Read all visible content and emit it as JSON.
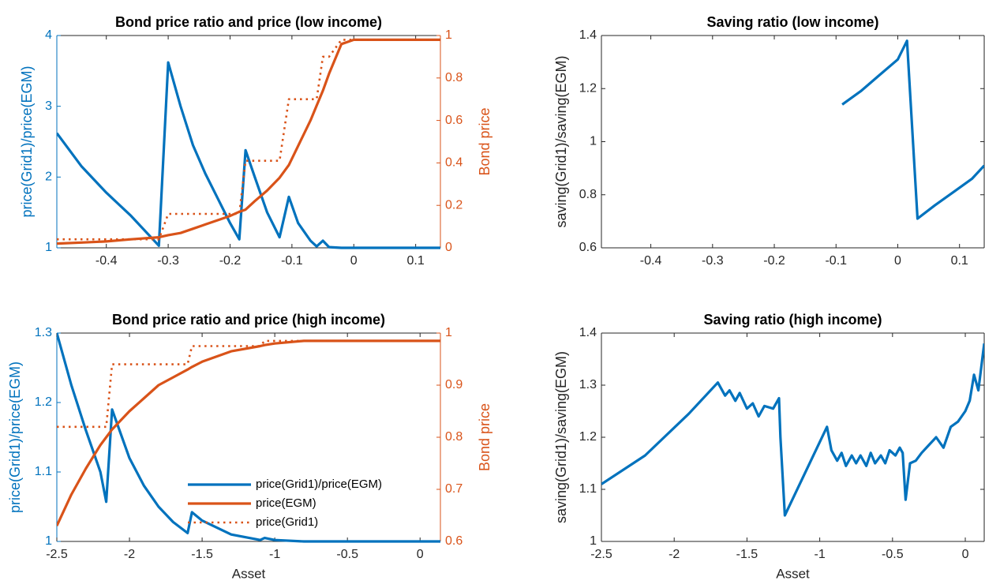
{
  "chart_data": [
    {
      "type": "line",
      "title": "Bond price ratio and price (low income)",
      "ylabel": "price(Grid1)/price(EGM)",
      "y2label": "Bond price",
      "ycolor": "#0072BD",
      "y2color": "#D95319",
      "xlim": [
        -0.48,
        0.14
      ],
      "xticks": [
        -0.4,
        -0.3,
        -0.2,
        -0.1,
        0,
        0.1
      ],
      "ylim": [
        1,
        4
      ],
      "yticks": [
        1,
        2,
        3,
        4
      ],
      "y2lim": [
        0,
        1
      ],
      "y2ticks": [
        0,
        0.2,
        0.4,
        0.6,
        0.8,
        1
      ],
      "x": [
        -0.48,
        -0.44,
        -0.4,
        -0.36,
        -0.315,
        -0.3,
        -0.28,
        -0.26,
        -0.24,
        -0.22,
        -0.2,
        -0.185,
        -0.175,
        -0.16,
        -0.14,
        -0.12,
        -0.105,
        -0.09,
        -0.07,
        -0.06,
        -0.05,
        -0.04,
        -0.02,
        0,
        0.05,
        0.1,
        0.14
      ],
      "series": [
        {
          "color": "#0072BD",
          "linestyle": "solid",
          "values": [
            2.62,
            2.15,
            1.78,
            1.45,
            1.03,
            3.62,
            3.0,
            2.45,
            2.05,
            1.7,
            1.35,
            1.12,
            2.38,
            2.0,
            1.5,
            1.15,
            1.72,
            1.35,
            1.1,
            1.02,
            1.1,
            1.01,
            1.0,
            1.0,
            1.0,
            1.0,
            1.0
          ]
        },
        {
          "color": "#D95319",
          "linestyle": "solid",
          "axis": "y2",
          "values": [
            0.02,
            0.025,
            0.03,
            0.04,
            0.05,
            0.06,
            0.07,
            0.09,
            0.11,
            0.13,
            0.15,
            0.17,
            0.18,
            0.22,
            0.27,
            0.33,
            0.39,
            0.48,
            0.6,
            0.67,
            0.74,
            0.82,
            0.96,
            0.98,
            0.98,
            0.98,
            0.98
          ]
        },
        {
          "color": "#D95319",
          "linestyle": "dotted",
          "axis": "y2",
          "values": [
            0.04,
            0.04,
            0.04,
            0.04,
            0.04,
            0.16,
            0.16,
            0.16,
            0.16,
            0.16,
            0.16,
            0.16,
            0.41,
            0.41,
            0.41,
            0.41,
            0.7,
            0.7,
            0.7,
            0.7,
            0.9,
            0.9,
            0.98,
            0.98,
            0.98,
            0.98,
            0.98
          ]
        }
      ]
    },
    {
      "type": "line",
      "title": "Saving ratio (low income)",
      "ylabel": "saving(Grid1)/saving(EGM)",
      "xlim": [
        -0.48,
        0.14
      ],
      "xticks": [
        -0.4,
        -0.3,
        -0.2,
        -0.1,
        0,
        0.1
      ],
      "ylim": [
        0.6,
        1.4
      ],
      "yticks": [
        0.6,
        0.8,
        1,
        1.2,
        1.4
      ],
      "x": [
        -0.09,
        -0.06,
        -0.03,
        0,
        0.015,
        0.032,
        0.06,
        0.09,
        0.12,
        0.14
      ],
      "color": "#0072BD",
      "values": [
        1.14,
        1.19,
        1.25,
        1.31,
        1.38,
        0.71,
        0.76,
        0.81,
        0.86,
        0.91
      ]
    },
    {
      "type": "line",
      "title": "Bond price ratio and price  (high income)",
      "xlabel": "Asset",
      "ylabel": "price(Grid1)/price(EGM)",
      "y2label": "Bond price",
      "ycolor": "#0072BD",
      "y2color": "#D95319",
      "legend": "lower right",
      "xlim": [
        -2.5,
        0.14
      ],
      "xticks": [
        -2.5,
        -2,
        -1.5,
        -1,
        -0.5,
        0
      ],
      "ylim": [
        1,
        1.3
      ],
      "yticks": [
        1,
        1.1,
        1.2,
        1.3
      ],
      "y2lim": [
        0.6,
        1
      ],
      "y2ticks": [
        0.6,
        0.7,
        0.8,
        0.9,
        1
      ],
      "x": [
        -2.5,
        -2.4,
        -2.3,
        -2.2,
        -2.16,
        -2.12,
        -2.0,
        -1.9,
        -1.8,
        -1.7,
        -1.6,
        -1.57,
        -1.5,
        -1.3,
        -1.1,
        -1.07,
        -1.0,
        -0.8,
        -0.5,
        -0.2,
        0.14
      ],
      "series": [
        {
          "name": "price(Grid1)/price(EGM)",
          "color": "#0072BD",
          "linestyle": "solid",
          "values": [
            1.3,
            1.225,
            1.16,
            1.1,
            1.057,
            1.19,
            1.12,
            1.08,
            1.05,
            1.028,
            1.012,
            1.042,
            1.03,
            1.01,
            1.002,
            1.005,
            1.002,
            1.0,
            1.0,
            1.0,
            1.0
          ]
        },
        {
          "name": "price(EGM)",
          "color": "#D95319",
          "linestyle": "solid",
          "axis": "y2",
          "values": [
            0.63,
            0.69,
            0.74,
            0.785,
            0.8,
            0.815,
            0.85,
            0.875,
            0.9,
            0.915,
            0.93,
            0.935,
            0.945,
            0.965,
            0.975,
            0.977,
            0.98,
            0.985,
            0.985,
            0.985,
            0.985
          ]
        },
        {
          "name": "price(Grid1)",
          "color": "#D95319",
          "linestyle": "dotted",
          "axis": "y2",
          "values": [
            0.82,
            0.82,
            0.82,
            0.82,
            0.82,
            0.94,
            0.94,
            0.94,
            0.94,
            0.94,
            0.94,
            0.975,
            0.975,
            0.975,
            0.975,
            0.985,
            0.985,
            0.985,
            0.985,
            0.985,
            0.985
          ]
        }
      ]
    },
    {
      "type": "line",
      "title": "Saving ratio (high income)",
      "xlabel": "Asset",
      "ylabel": "saving(Grid1)/saving(EGM)",
      "xlim": [
        -2.5,
        0.13
      ],
      "xticks": [
        -2.5,
        -2,
        -1.5,
        -1,
        -0.5,
        0
      ],
      "ylim": [
        1,
        1.4
      ],
      "yticks": [
        1,
        1.1,
        1.2,
        1.3,
        1.4
      ],
      "x": [
        -2.5,
        -2.2,
        -1.9,
        -1.7,
        -1.65,
        -1.62,
        -1.58,
        -1.55,
        -1.5,
        -1.46,
        -1.42,
        -1.38,
        -1.32,
        -1.28,
        -1.27,
        -1.24,
        -0.95,
        -0.92,
        -0.88,
        -0.85,
        -0.82,
        -0.78,
        -0.75,
        -0.72,
        -0.68,
        -0.65,
        -0.62,
        -0.58,
        -0.55,
        -0.52,
        -0.48,
        -0.45,
        -0.43,
        -0.41,
        -0.38,
        -0.34,
        -0.3,
        -0.25,
        -0.2,
        -0.15,
        -0.1,
        -0.05,
        0,
        0.03,
        0.06,
        0.09,
        0.13
      ],
      "color": "#0072BD",
      "values": [
        1.11,
        1.165,
        1.245,
        1.305,
        1.28,
        1.29,
        1.27,
        1.285,
        1.255,
        1.265,
        1.24,
        1.26,
        1.255,
        1.275,
        1.2,
        1.05,
        1.22,
        1.175,
        1.155,
        1.17,
        1.145,
        1.165,
        1.15,
        1.165,
        1.145,
        1.17,
        1.15,
        1.165,
        1.15,
        1.175,
        1.165,
        1.18,
        1.17,
        1.08,
        1.15,
        1.155,
        1.17,
        1.185,
        1.2,
        1.18,
        1.22,
        1.23,
        1.25,
        1.27,
        1.32,
        1.29,
        1.38
      ]
    }
  ]
}
